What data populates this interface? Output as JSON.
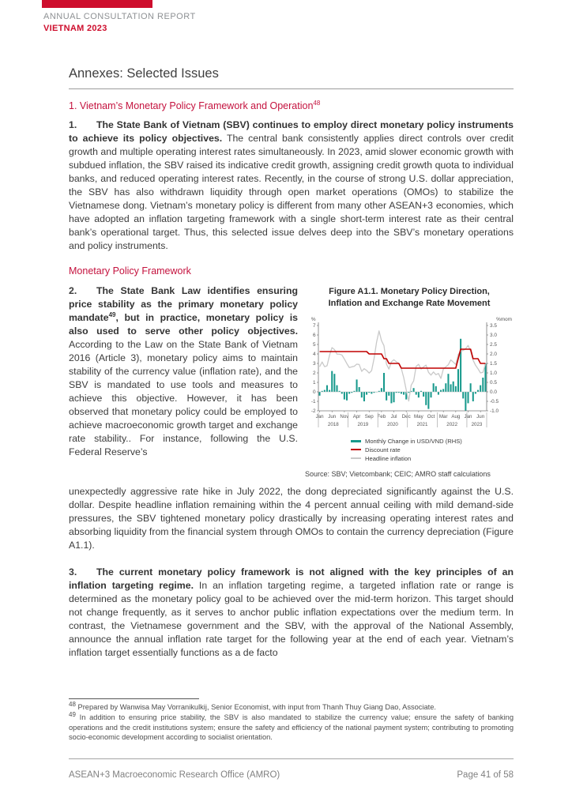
{
  "header": {
    "report_type": "ANNUAL CONSULTATION REPORT",
    "country_year": "VIETNAM 2023",
    "brand_color": "#CE0E2D"
  },
  "title": "Annexes: Selected Issues",
  "section": {
    "heading": "1. Vietnam’s Monetary Policy Framework and Operation",
    "heading_sup": "48",
    "heading_color": "#C4123E"
  },
  "para1": {
    "num": "1.",
    "bold": "The State Bank of Vietnam (SBV) continues to employ direct monetary policy instruments to achieve its policy objectives.",
    "text": " The central bank consistently applies direct controls over credit growth and multiple operating interest rates simultaneously. In 2023, amid slower economic growth with subdued inflation, the SBV raised its indicative credit growth, assigning credit growth quota to individual banks, and reduced operating interest rates. Recently, in the course of strong U.S. dollar appreciation, the SBV has also withdrawn liquidity through open market operations (OMOs) to stabilize the Vietnamese dong. Vietnam’s monetary policy is different from many other ASEAN+3 economies, which have adopted an inflation targeting framework with a single short-term interest rate as their central bank’s operational target. Thus, this selected issue delves deep into the SBV’s monetary operations and policy instruments."
  },
  "subheading": "Monetary Policy Framework",
  "para2": {
    "num": "2.",
    "bold1": "The State Bank Law identifies ensuring price stability as the primary monetary policy mandate",
    "sup": "49",
    "bold2": ", but in practice, monetary policy is also used to serve other policy objectives.",
    "text": " According to the Law on the State Bank of Vietnam 2016 (Article 3), monetary policy aims to maintain stability of the currency value (inflation rate), and the SBV is mandated to use tools and measures to achieve this objective. However, it has been observed that monetary policy could be employed to achieve macroeconomic growth target and exchange rate stability.. For instance, following the U.S. Federal Reserve’s"
  },
  "para2_cont": "unexpectedly aggressive rate hike in July 2022, the dong depreciated significantly against the U.S. dollar. Despite headline inflation remaining within the 4 percent annual ceiling with mild demand-side pressures, the SBV tightened monetary policy drastically by increasing operating interest rates and absorbing liquidity from the financial system through OMOs to contain the currency depreciation (Figure A1.1).",
  "para3": {
    "num": "3.",
    "bold": "The current monetary policy framework is not aligned with the key principles of an inflation targeting regime.",
    "text": " In an inflation targeting regime, a targeted inflation rate or range is determined as the monetary policy goal to be achieved over the mid-term horizon. This target should not change frequently, as it serves to anchor public inflation expectations over the medium term. In contrast, the Vietnamese government and the SBV, with the approval of the National Assembly, announce the annual inflation rate target for the following year at the end of each year. Vietnam’s inflation target essentially functions as a de facto"
  },
  "figure": {
    "caption_line1": "Figure A1.1. Monetary Policy Direction,",
    "caption_line2": "Inflation and Exchange Rate Movement",
    "source": "Source: SBV; Vietcombank; CEIC; AMRO staff calculations"
  },
  "chart_data": {
    "type": "combo",
    "title": "Figure A1.1. Monetary Policy Direction, Inflation and Exchange Rate Movement",
    "axis_left": {
      "label": "%",
      "min": -2,
      "max": 7,
      "step": 1
    },
    "axis_right": {
      "label": "%mom",
      "min": -1.0,
      "max": 3.5,
      "step": 0.5
    },
    "grid": false,
    "legend_position": "bottom",
    "months": [
      "2018-01",
      "2018-02",
      "2018-03",
      "2018-04",
      "2018-05",
      "2018-06",
      "2018-07",
      "2018-08",
      "2018-09",
      "2018-10",
      "2018-11",
      "2018-12",
      "2019-01",
      "2019-02",
      "2019-03",
      "2019-04",
      "2019-05",
      "2019-06",
      "2019-07",
      "2019-08",
      "2019-09",
      "2019-10",
      "2019-11",
      "2019-12",
      "2020-01",
      "2020-02",
      "2020-03",
      "2020-04",
      "2020-05",
      "2020-06",
      "2020-07",
      "2020-08",
      "2020-09",
      "2020-10",
      "2020-11",
      "2020-12",
      "2021-01",
      "2021-02",
      "2021-03",
      "2021-04",
      "2021-05",
      "2021-06",
      "2021-07",
      "2021-08",
      "2021-09",
      "2021-10",
      "2021-11",
      "2021-12",
      "2022-01",
      "2022-02",
      "2022-03",
      "2022-04",
      "2022-05",
      "2022-06",
      "2022-07",
      "2022-08",
      "2022-09",
      "2022-10",
      "2022-11",
      "2022-12",
      "2023-01",
      "2023-02",
      "2023-03",
      "2023-04",
      "2023-05",
      "2023-06",
      "2023-07",
      "2023-08"
    ],
    "x_ticks": [
      {
        "index": 0,
        "label": "Jan"
      },
      {
        "index": 5,
        "label": "Jun"
      },
      {
        "index": 10,
        "label": "Nov"
      },
      {
        "index": 15,
        "label": "Apr"
      },
      {
        "index": 20,
        "label": "Sep"
      },
      {
        "index": 25,
        "label": "Feb"
      },
      {
        "index": 30,
        "label": "Jul"
      },
      {
        "index": 35,
        "label": "Dec"
      },
      {
        "index": 40,
        "label": "May"
      },
      {
        "index": 45,
        "label": "Oct"
      },
      {
        "index": 50,
        "label": "Mar"
      },
      {
        "index": 55,
        "label": "Aug"
      },
      {
        "index": 60,
        "label": "Jan"
      },
      {
        "index": 65,
        "label": "Jun"
      }
    ],
    "year_groups": [
      {
        "label": "2018",
        "start": 0,
        "end": 11
      },
      {
        "label": "2019",
        "start": 12,
        "end": 23
      },
      {
        "label": "2020",
        "start": 24,
        "end": 35
      },
      {
        "label": "2021",
        "start": 36,
        "end": 47
      },
      {
        "label": "2022",
        "start": 48,
        "end": 59
      },
      {
        "label": "2023",
        "start": 60,
        "end": 67
      }
    ],
    "series": [
      {
        "name": "Monthly Change in USD/VND (RHS)",
        "type": "bar",
        "axis": "right",
        "color": "#17998C",
        "stroke_width": 0,
        "values": [
          -0.2,
          0.05,
          0.1,
          0.35,
          0.1,
          1.1,
          0.95,
          0.35,
          0.05,
          -0.1,
          -0.4,
          -0.45,
          -0.1,
          -0.05,
          0.05,
          0.65,
          0.25,
          -0.3,
          -0.5,
          -0.15,
          -0.05,
          -0.1,
          -0.05,
          0.0,
          0.05,
          0.2,
          1.0,
          -0.45,
          -0.2,
          -0.6,
          -0.55,
          -0.05,
          -0.05,
          -0.1,
          -0.15,
          -0.4,
          -0.05,
          0.05,
          0.2,
          -0.15,
          -0.3,
          0.05,
          -0.25,
          -0.7,
          -0.9,
          -0.3,
          0.45,
          0.3,
          -0.15,
          0.1,
          0.15,
          0.45,
          0.95,
          0.4,
          0.55,
          0.3,
          1.2,
          2.8,
          -0.35,
          -1.0,
          -0.6,
          0.45,
          -0.5,
          -0.1,
          0.1,
          0.35,
          0.75,
          1.5
        ]
      },
      {
        "name": "Discount rate",
        "type": "line",
        "axis": "left",
        "color": "#C00000",
        "stroke_width": 1.6,
        "values": [
          4.25,
          4.25,
          4.25,
          4.25,
          4.25,
          4.25,
          4.25,
          4.25,
          4.25,
          4.25,
          4.25,
          4.25,
          4.25,
          4.25,
          4.25,
          4.25,
          4.25,
          4.25,
          4.25,
          4.25,
          4.0,
          4.0,
          4.0,
          4.0,
          4.0,
          4.0,
          3.5,
          3.5,
          3.0,
          3.0,
          3.0,
          3.0,
          3.0,
          2.5,
          2.5,
          2.5,
          2.5,
          2.5,
          2.5,
          2.5,
          2.5,
          2.5,
          2.5,
          2.5,
          2.5,
          2.5,
          2.5,
          2.5,
          2.5,
          2.5,
          2.5,
          2.5,
          2.5,
          2.5,
          2.5,
          2.5,
          3.5,
          4.5,
          4.5,
          4.5,
          4.5,
          4.5,
          3.5,
          3.5,
          3.5,
          3.0,
          3.0,
          3.0
        ]
      },
      {
        "name": "Headline inflation",
        "type": "line",
        "axis": "left",
        "color": "#C9C9C9",
        "stroke_width": 1.3,
        "values": [
          2.65,
          3.15,
          2.66,
          2.75,
          3.86,
          4.67,
          4.46,
          3.98,
          3.98,
          3.89,
          3.46,
          2.98,
          2.56,
          2.64,
          2.7,
          2.93,
          2.88,
          2.16,
          2.44,
          2.26,
          1.98,
          2.24,
          3.52,
          5.23,
          6.43,
          5.4,
          4.87,
          2.93,
          2.4,
          3.17,
          3.39,
          3.18,
          2.98,
          2.47,
          1.48,
          0.19,
          -0.97,
          0.7,
          1.16,
          2.7,
          2.9,
          2.41,
          2.64,
          2.82,
          2.06,
          1.77,
          2.1,
          1.81,
          1.94,
          1.42,
          2.41,
          2.64,
          2.86,
          3.37,
          3.14,
          2.89,
          3.94,
          4.3,
          4.37,
          4.55,
          4.89,
          4.31,
          3.35,
          2.81,
          2.43,
          2.0,
          2.06,
          2.96
        ]
      }
    ]
  },
  "footnotes": [
    {
      "sup": "48",
      "text": " Prepared by Wanwisa May Vorranikulkij, Senior Economist, with input from Thanh Thuy Giang Dao, Associate."
    },
    {
      "sup": "49",
      "text": " In addition to ensuring price stability, the SBV is also mandated to stabilize the currency value; ensure the safety of banking operations and the credit institutions system; ensure the safety and efficiency of the national payment system; contributing to promoting socio-economic development according to socialist orientation."
    }
  ],
  "footer": {
    "left": "ASEAN+3 Macroeconomic Research Office (AMRO)",
    "right": "Page 41 of 58"
  }
}
